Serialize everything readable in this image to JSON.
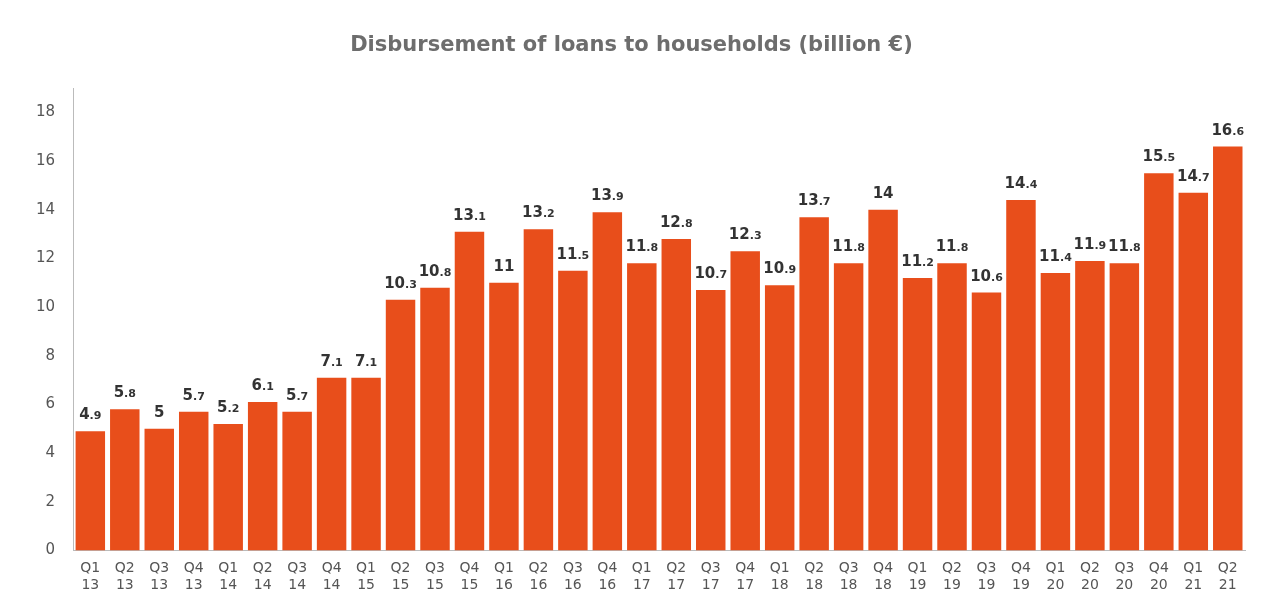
{
  "chart_data": {
    "type": "bar",
    "title": "Disbursement of loans to households (billion €)",
    "categories": [
      "Q1 13",
      "Q2 13",
      "Q3 13",
      "Q4 13",
      "Q1 14",
      "Q2 14",
      "Q3 14",
      "Q4 14",
      "Q1 15",
      "Q2 15",
      "Q3 15",
      "Q4 15",
      "Q1 16",
      "Q2 16",
      "Q3 16",
      "Q4 16",
      "Q1 17",
      "Q2 17",
      "Q3 17",
      "Q4 17",
      "Q1 18",
      "Q2 18",
      "Q3 18",
      "Q4 18",
      "Q1 19",
      "Q2 19",
      "Q3 19",
      "Q4 19",
      "Q1 20",
      "Q2 20",
      "Q3 20",
      "Q4 20",
      "Q1 21",
      "Q2 21"
    ],
    "values": [
      4.9,
      5.8,
      5,
      5.7,
      5.2,
      6.1,
      5.7,
      7.1,
      7.1,
      10.3,
      10.8,
      13.1,
      11,
      13.2,
      11.5,
      13.9,
      11.8,
      12.8,
      10.7,
      12.3,
      10.9,
      13.7,
      11.8,
      14,
      11.2,
      11.8,
      10.6,
      14.4,
      11.4,
      11.9,
      11.8,
      15.5,
      14.7,
      16.6
    ],
    "color": "#e84e1b",
    "ylim": [
      0,
      19
    ],
    "yticks": [
      0,
      2,
      4,
      6,
      8,
      10,
      12,
      14,
      16,
      18
    ],
    "grid": false,
    "legend": false,
    "data_labels": true
  }
}
